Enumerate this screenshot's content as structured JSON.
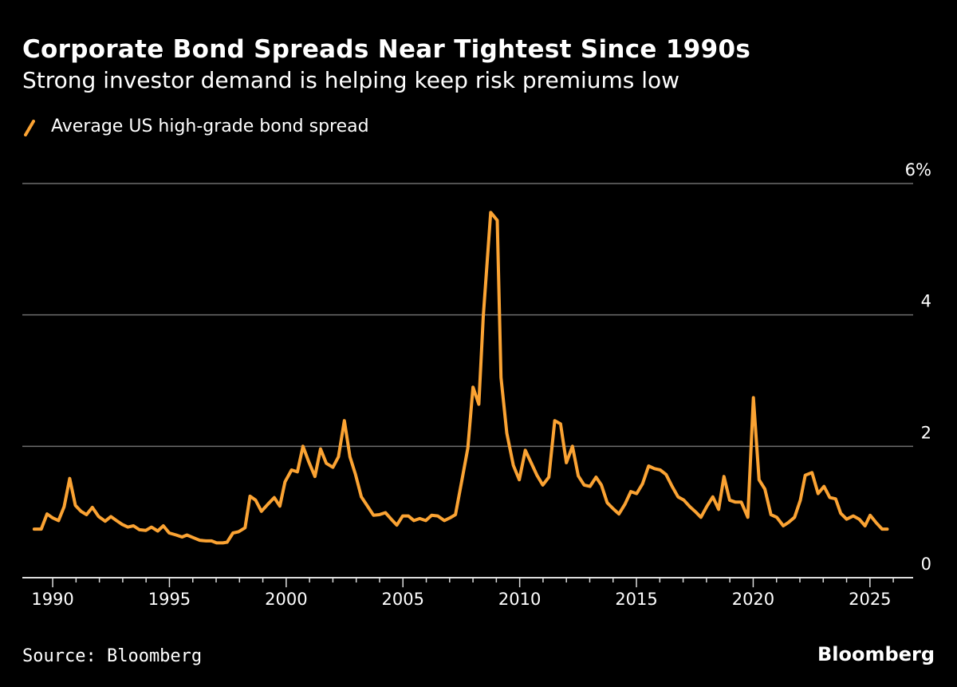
{
  "chart_data": {
    "type": "line",
    "title": "Corporate Bond Spreads Near Tightest Since 1990s",
    "subtitle": "Strong investor demand is helping keep risk premiums low",
    "source": "Source: Bloomberg",
    "brand": "Bloomberg",
    "xlabel": "",
    "ylabel": "",
    "xlim": [
      1988.7,
      2026.85
    ],
    "ylim": [
      0,
      6
    ],
    "y_ticks": [
      {
        "value": 0,
        "label": "0"
      },
      {
        "value": 2,
        "label": "2"
      },
      {
        "value": 4,
        "label": "4"
      },
      {
        "value": 6,
        "label": "6%"
      }
    ],
    "x_ticks": [
      {
        "value": 1990,
        "label": "1990"
      },
      {
        "value": 1995,
        "label": "1995"
      },
      {
        "value": 2000,
        "label": "2000"
      },
      {
        "value": 2005,
        "label": "2005"
      },
      {
        "value": 2010,
        "label": "2010"
      },
      {
        "value": 2015,
        "label": "2015"
      },
      {
        "value": 2020,
        "label": "2020"
      },
      {
        "value": 2025,
        "label": "2025"
      }
    ],
    "grid": true,
    "legend_placement": "top-left",
    "series": [
      {
        "name": "Average US high-grade bond spread",
        "color": "#FBA333",
        "x": [
          1989.21,
          1989.51,
          1989.76,
          1990.0,
          1990.25,
          1990.49,
          1990.73,
          1990.97,
          1991.21,
          1991.45,
          1991.7,
          1991.97,
          1992.25,
          1992.49,
          1992.73,
          1992.98,
          1993.22,
          1993.46,
          1993.71,
          1993.99,
          1994.23,
          1994.5,
          1994.74,
          1994.99,
          1995.29,
          1995.54,
          1995.75,
          1996.02,
          1996.3,
          1996.57,
          1996.8,
          1997.02,
          1997.29,
          1997.47,
          1997.72,
          1997.96,
          1998.24,
          1998.45,
          1998.69,
          1998.94,
          1999.22,
          1999.49,
          1999.73,
          1999.95,
          2000.23,
          2000.48,
          2000.72,
          2000.96,
          2001.23,
          2001.47,
          2001.72,
          2002.0,
          2002.24,
          2002.49,
          2002.73,
          2002.97,
          2003.22,
          2003.46,
          2003.74,
          2003.99,
          2004.25,
          2004.5,
          2004.74,
          2004.99,
          2005.23,
          2005.47,
          2005.72,
          2005.98,
          2006.23,
          2006.49,
          2006.77,
          2007.01,
          2007.25,
          2007.56,
          2007.78,
          2008.0,
          2008.25,
          2008.44,
          2008.76,
          2009.04,
          2009.2,
          2009.45,
          2009.73,
          2009.98,
          2010.24,
          2010.49,
          2010.74,
          2010.99,
          2011.25,
          2011.5,
          2011.75,
          2012.0,
          2012.26,
          2012.51,
          2012.76,
          2013.01,
          2013.27,
          2013.5,
          2013.75,
          2014.0,
          2014.25,
          2014.51,
          2014.76,
          2015.01,
          2015.26,
          2015.52,
          2015.77,
          2016.02,
          2016.27,
          2016.53,
          2016.78,
          2017.03,
          2017.29,
          2017.54,
          2017.76,
          2018.02,
          2018.27,
          2018.52,
          2018.75,
          2018.99,
          2019.24,
          2019.49,
          2019.77,
          2020.01,
          2020.25,
          2020.5,
          2020.76,
          2021.01,
          2021.29,
          2021.51,
          2021.77,
          2022.02,
          2022.23,
          2022.52,
          2022.78,
          2023.03,
          2023.28,
          2023.53,
          2023.75,
          2024.0,
          2024.29,
          2024.54,
          2024.79,
          2025.01,
          2025.26,
          2025.52,
          2025.74
        ],
        "values": [
          0.74,
          0.74,
          0.97,
          0.91,
          0.87,
          1.08,
          1.51,
          1.1,
          1.01,
          0.96,
          1.07,
          0.93,
          0.86,
          0.93,
          0.87,
          0.81,
          0.77,
          0.79,
          0.73,
          0.72,
          0.77,
          0.71,
          0.79,
          0.68,
          0.65,
          0.62,
          0.65,
          0.61,
          0.57,
          0.56,
          0.56,
          0.53,
          0.53,
          0.54,
          0.68,
          0.7,
          0.76,
          1.24,
          1.18,
          1.01,
          1.12,
          1.22,
          1.09,
          1.46,
          1.64,
          1.61,
          2.0,
          1.77,
          1.54,
          1.96,
          1.74,
          1.68,
          1.84,
          2.39,
          1.84,
          1.57,
          1.23,
          1.1,
          0.95,
          0.96,
          0.99,
          0.89,
          0.8,
          0.94,
          0.94,
          0.87,
          0.9,
          0.87,
          0.95,
          0.94,
          0.87,
          0.91,
          0.96,
          1.55,
          1.97,
          2.9,
          2.64,
          3.98,
          5.56,
          5.44,
          3.05,
          2.2,
          1.71,
          1.49,
          1.94,
          1.75,
          1.56,
          1.41,
          1.53,
          2.39,
          2.34,
          1.75,
          2.0,
          1.55,
          1.41,
          1.39,
          1.53,
          1.41,
          1.14,
          1.05,
          0.97,
          1.12,
          1.31,
          1.28,
          1.43,
          1.7,
          1.66,
          1.64,
          1.57,
          1.39,
          1.23,
          1.18,
          1.08,
          1.0,
          0.92,
          1.09,
          1.23,
          1.04,
          1.54,
          1.18,
          1.15,
          1.15,
          0.92,
          2.74,
          1.49,
          1.35,
          0.96,
          0.92,
          0.79,
          0.84,
          0.92,
          1.18,
          1.56,
          1.6,
          1.28,
          1.39,
          1.22,
          1.2,
          0.98,
          0.89,
          0.94,
          0.89,
          0.79,
          0.95,
          0.84,
          0.74,
          0.74
        ]
      }
    ]
  }
}
